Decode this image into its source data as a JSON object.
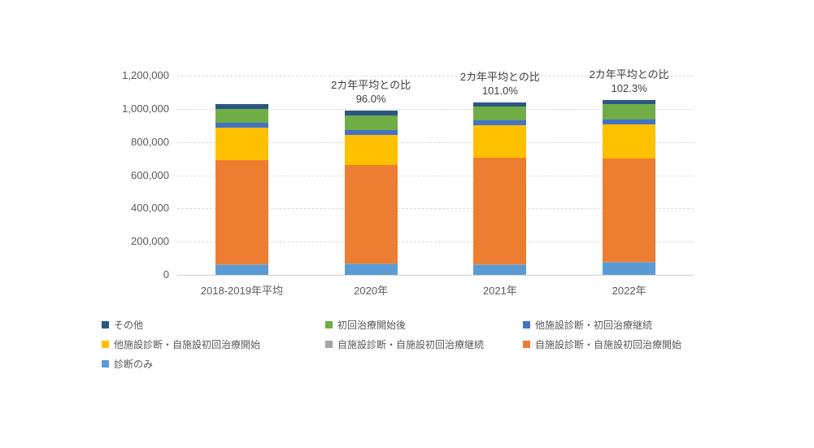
{
  "chart_data": {
    "type": "bar",
    "subtype": "stacked",
    "title": "",
    "xlabel": "",
    "ylabel": "",
    "ylim": [
      0,
      1200000
    ],
    "ytick_step": 200000,
    "ytick_labels": [
      "0",
      "200,000",
      "400,000",
      "600,000",
      "800,000",
      "1,000,000",
      "1,200,000"
    ],
    "grid": true,
    "legend_position": "bottom",
    "categories": [
      "2018-2019年平均",
      "2020年",
      "2021年",
      "2022年"
    ],
    "series": [
      {
        "id": "diagnosis-only",
        "name": "診断のみ",
        "color": "#5B9BD5",
        "values": [
          60000,
          62000,
          60000,
          73000
        ]
      },
      {
        "id": "own-dx-own-continued",
        "name": "自施設診断・自施設初回治療継続",
        "color": "#A5A5A5",
        "values": [
          6000,
          5000,
          5000,
          5000
        ]
      },
      {
        "id": "own-dx-own-initial",
        "name": "自施設診断・自施設初回治療開始",
        "color": "#ED7D31",
        "values": [
          627000,
          595000,
          640000,
          625000
        ]
      },
      {
        "id": "other-dx-own-initial",
        "name": "他施設診断・自施設初回治療開始",
        "color": "#FFC000",
        "values": [
          192000,
          182000,
          198000,
          201000
        ]
      },
      {
        "id": "other-dx-continued",
        "name": "他施設診断・初回治療継続",
        "color": "#4472C4",
        "values": [
          30000,
          28000,
          30000,
          30000
        ]
      },
      {
        "id": "after-initial-treatment",
        "name": "初回治療開始後",
        "color": "#70AD47",
        "values": [
          85000,
          90000,
          79000,
          94000
        ]
      },
      {
        "id": "other",
        "name": "その他",
        "color": "#2A5783",
        "values": [
          30000,
          27000,
          28000,
          26000
        ]
      }
    ],
    "totals": [
      1030000,
      989000,
      1040000,
      1054000
    ],
    "annotations": [
      {
        "category_index": 1,
        "lines": [
          "2カ年平均との比",
          "96.0%"
        ]
      },
      {
        "category_index": 2,
        "lines": [
          "2カ年平均との比",
          "101.0%"
        ]
      },
      {
        "category_index": 3,
        "lines": [
          "2カ年平均との比",
          "102.3%"
        ]
      }
    ],
    "legend_order": [
      "other",
      "after-initial-treatment",
      "other-dx-continued",
      "other-dx-own-initial",
      "own-dx-own-continued",
      "own-dx-own-initial",
      "diagnosis-only"
    ]
  },
  "colors": {
    "gridline": "#d9d9d9",
    "axis_text": "#595959",
    "annotation_text": "#404040",
    "background": "#ffffff"
  }
}
